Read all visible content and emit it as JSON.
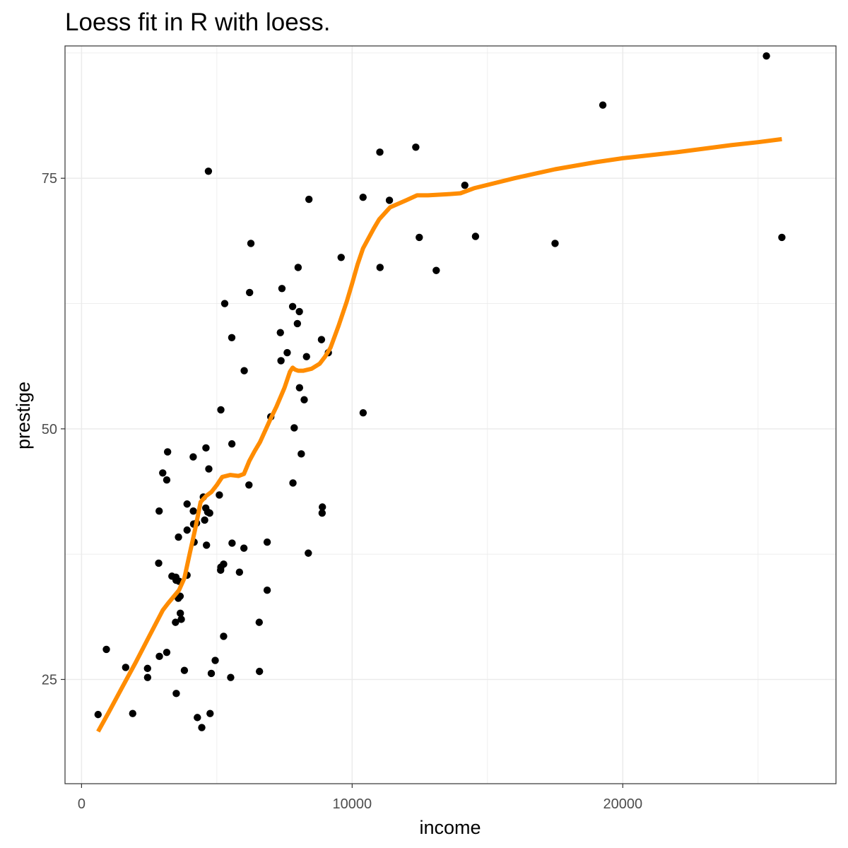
{
  "chart_data": {
    "type": "scatter",
    "title": "Loess fit in R with loess.",
    "xlabel": "income",
    "ylabel": "prestige",
    "xlim": [
      -611,
      27879
    ],
    "ylim": [
      14.6,
      88.2
    ],
    "x_ticks": [
      0,
      10000,
      20000
    ],
    "x_tick_labels": [
      "0",
      "10000",
      "20000"
    ],
    "y_ticks": [
      25,
      50,
      75
    ],
    "y_tick_labels": [
      "25",
      "50",
      "75"
    ],
    "grid": true,
    "legend": "none",
    "colors": {
      "points": "#000000",
      "fit_line": "#ff8c00",
      "grid": "#ebebeb",
      "panel_border": "#333333",
      "tick_label": "#4d4d4d"
    },
    "points": {
      "x": [
        25879,
        19263,
        11377,
        11023,
        17498,
        13107,
        12351,
        12480,
        25308,
        10402,
        11030,
        14163,
        14558,
        8403,
        9120,
        6210,
        7800,
        6011,
        7405,
        7370,
        5555,
        8054,
        7976,
        8049,
        5290,
        4688,
        6258,
        4661,
        8003,
        10406,
        7347,
        6186,
        8120,
        6993,
        8313,
        8228,
        5551,
        7859,
        4590,
        8866,
        8890,
        4597,
        7812,
        4500,
        4140,
        5148,
        3643,
        3900,
        8900,
        7600,
        6000,
        3898,
        4126,
        5148,
        4617,
        5140,
        5250,
        3686,
        4160,
        4703,
        3650,
        3340,
        3472,
        3000,
        3180,
        3493,
        4250,
        3600,
        3148,
        1890,
        1630,
        3500,
        3148,
        2868,
        5092,
        3582,
        4443,
        4280,
        4735,
        5562,
        6860,
        3575,
        6575,
        4939,
        3800,
        5511,
        4750,
        9593,
        5835,
        6565,
        6860,
        4795,
        4549,
        4130,
        8380,
        2441,
        3485,
        3900,
        2876,
        2438,
        2850,
        5250,
        917,
        611
      ],
      "y": [
        69.1,
        82.3,
        72.8,
        77.6,
        68.5,
        65.8,
        78.1,
        69.1,
        87.2,
        73.1,
        66.1,
        74.3,
        69.2,
        72.9,
        57.6,
        63.6,
        62.2,
        55.8,
        64.0,
        56.8,
        48.5,
        54.1,
        60.5,
        61.7,
        62.5,
        75.7,
        68.5,
        41.7,
        66.1,
        51.6,
        59.6,
        44.4,
        47.5,
        51.2,
        57.2,
        52.9,
        59.1,
        50.1,
        42.1,
        58.9,
        41.6,
        48.1,
        44.6,
        43.2,
        40.5,
        51.9,
        33.3,
        39.9,
        42.2,
        57.6,
        38.1,
        35.4,
        47.2,
        36.2,
        38.4,
        35.9,
        36.5,
        31.0,
        38.7,
        46.0,
        31.6,
        35.3,
        30.7,
        45.6,
        47.7,
        34.9,
        40.6,
        34.8,
        27.7,
        21.6,
        26.2,
        23.6,
        44.9,
        41.8,
        43.4,
        39.2,
        20.2,
        21.2,
        41.6,
        38.6,
        38.7,
        33.1,
        25.8,
        26.9,
        25.9,
        25.2,
        21.6,
        67.1,
        35.7,
        30.7,
        33.9,
        25.6,
        40.9,
        41.8,
        37.6,
        25.2,
        35.2,
        42.5,
        27.3,
        26.1,
        36.6,
        29.3,
        28.0,
        21.5
      ]
    },
    "series": [
      {
        "type": "line",
        "x": [
          611,
          1000,
          1500,
          2000,
          2500,
          3000,
          3200,
          3600,
          3800,
          4000,
          4200,
          4400,
          4600,
          4800,
          5000,
          5200,
          5500,
          5800,
          6000,
          6200,
          6400,
          6600,
          6800,
          7000,
          7200,
          7500,
          7700,
          7800,
          7900,
          8000,
          8200,
          8500,
          8800,
          9000,
          9200,
          9500,
          9800,
          10000,
          10200,
          10400,
          10800,
          11000,
          11400,
          12000,
          12400,
          12800,
          13500,
          14000,
          14500,
          16000,
          17500,
          19000,
          20000,
          22000,
          24000,
          25000,
          25879
        ],
        "y": [
          19.8,
          21.7,
          24.2,
          26.7,
          29.3,
          31.9,
          32.6,
          33.9,
          35.1,
          37.6,
          40.0,
          42.7,
          43.3,
          43.7,
          44.4,
          45.2,
          45.4,
          45.3,
          45.5,
          46.8,
          47.8,
          48.7,
          49.9,
          51.1,
          52.2,
          54.1,
          55.7,
          56.1,
          55.9,
          55.8,
          55.8,
          56.0,
          56.5,
          57.2,
          58.1,
          60.3,
          62.7,
          64.5,
          66.4,
          68.0,
          70.0,
          70.9,
          72.1,
          72.8,
          73.3,
          73.3,
          73.4,
          73.5,
          74.0,
          75.0,
          75.9,
          76.6,
          77.0,
          77.6,
          78.3,
          78.6,
          78.9
        ]
      }
    ]
  }
}
